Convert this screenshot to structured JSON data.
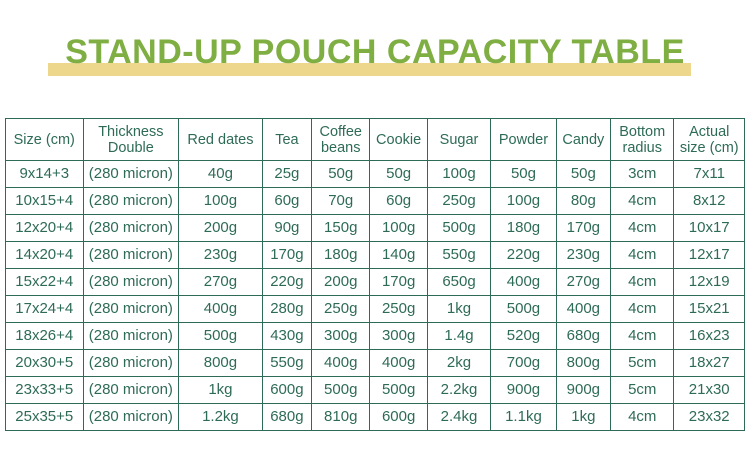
{
  "header": {
    "title": "STAND-UP POUCH CAPACITY TABLE"
  },
  "colors": {
    "title_green": "#7fae43",
    "underline_tan": "#ecd78d",
    "table_green": "#2e6b57"
  },
  "chart_data": {
    "type": "table",
    "title": "STAND-UP POUCH CAPACITY TABLE",
    "columns": [
      "Size (cm)",
      "Thickness Double",
      "Red dates",
      "Tea",
      "Coffee beans",
      "Cookie",
      "Sugar",
      "Powder",
      "Candy",
      "Bottom radius",
      "Actual size (cm)"
    ],
    "rows": [
      [
        "9x14+3",
        "(280 micron)",
        "40g",
        "25g",
        "50g",
        "50g",
        "100g",
        "50g",
        "50g",
        "3cm",
        "7x11"
      ],
      [
        "10x15+4",
        "(280 micron)",
        "100g",
        "60g",
        "70g",
        "60g",
        "250g",
        "100g",
        "80g",
        "4cm",
        "8x12"
      ],
      [
        "12x20+4",
        "(280 micron)",
        "200g",
        "90g",
        "150g",
        "100g",
        "500g",
        "180g",
        "170g",
        "4cm",
        "10x17"
      ],
      [
        "14x20+4",
        "(280 micron)",
        "230g",
        "170g",
        "180g",
        "140g",
        "550g",
        "220g",
        "230g",
        "4cm",
        "12x17"
      ],
      [
        "15x22+4",
        "(280 micron)",
        "270g",
        "220g",
        "200g",
        "170g",
        "650g",
        "400g",
        "270g",
        "4cm",
        "12x19"
      ],
      [
        "17x24+4",
        "(280 micron)",
        "400g",
        "280g",
        "250g",
        "250g",
        "1kg",
        "500g",
        "400g",
        "4cm",
        "15x21"
      ],
      [
        "18x26+4",
        "(280 micron)",
        "500g",
        "430g",
        "300g",
        "300g",
        "1.4g",
        "520g",
        "680g",
        "4cm",
        "16x23"
      ],
      [
        "20x30+5",
        "(280 micron)",
        "800g",
        "550g",
        "400g",
        "400g",
        "2kg",
        "700g",
        "800g",
        "5cm",
        "18x27"
      ],
      [
        "23x33+5",
        "(280 micron)",
        "1kg",
        "600g",
        "500g",
        "500g",
        "2.2kg",
        "900g",
        "900g",
        "5cm",
        "21x30"
      ],
      [
        "25x35+5",
        "(280 micron)",
        "1.2kg",
        "680g",
        "810g",
        "600g",
        "2.4kg",
        "1.1kg",
        "1kg",
        "4cm",
        "23x32"
      ]
    ]
  }
}
